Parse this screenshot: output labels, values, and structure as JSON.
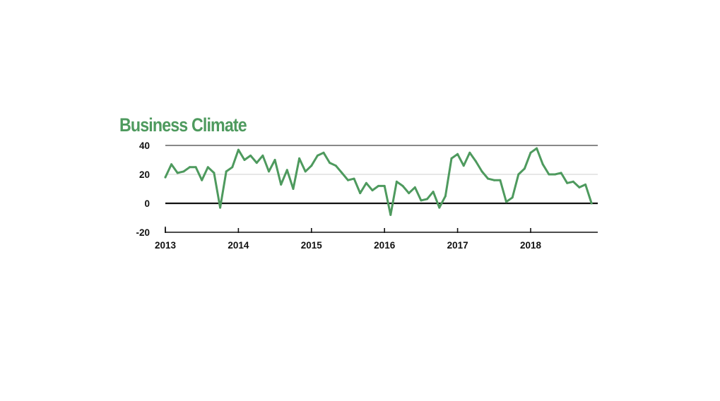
{
  "colors": {
    "series": "#4e9a5e",
    "axis": "#111111",
    "grid": "#cfcfcf",
    "title": "#4e9a5e"
  },
  "chart_data": {
    "type": "line",
    "title": "Business Climate",
    "xlabel": "",
    "ylabel": "",
    "ylim": [
      -20,
      40
    ],
    "xlim": [
      "2013-01",
      "2018-12"
    ],
    "y_ticks": [
      "40",
      "20",
      "0",
      "-20"
    ],
    "x_ticks": [
      "2013",
      "2014",
      "2015",
      "2016",
      "2017",
      "2018"
    ],
    "grid": "horizontal",
    "legend": "none",
    "series": [
      {
        "x": [
          "2013-01",
          "2013-02",
          "2013-03",
          "2013-04",
          "2013-05",
          "2013-06",
          "2013-07",
          "2013-08",
          "2013-09",
          "2013-10",
          "2013-11",
          "2013-12",
          "2014-01",
          "2014-02",
          "2014-03",
          "2014-04",
          "2014-05",
          "2014-06",
          "2014-07",
          "2014-08",
          "2014-09",
          "2014-10",
          "2014-11",
          "2014-12",
          "2015-01",
          "2015-02",
          "2015-03",
          "2015-04",
          "2015-05",
          "2015-06",
          "2015-07",
          "2015-08",
          "2015-09",
          "2015-10",
          "2015-11",
          "2015-12",
          "2016-01",
          "2016-02",
          "2016-03",
          "2016-04",
          "2016-05",
          "2016-06",
          "2016-07",
          "2016-08",
          "2016-09",
          "2016-10",
          "2016-11",
          "2016-12",
          "2017-01",
          "2017-02",
          "2017-03",
          "2017-04",
          "2017-05",
          "2017-06",
          "2017-07",
          "2017-08",
          "2017-09",
          "2017-10",
          "2017-11",
          "2017-12",
          "2018-01",
          "2018-02",
          "2018-03",
          "2018-04",
          "2018-05",
          "2018-06",
          "2018-07",
          "2018-08",
          "2018-09",
          "2018-10",
          "2018-11"
        ],
        "values": [
          18,
          27,
          21,
          22,
          25,
          25,
          16,
          25,
          21,
          -3,
          22,
          25,
          37,
          30,
          33,
          28,
          33,
          22,
          30,
          13,
          23,
          10,
          31,
          22,
          26,
          33,
          35,
          28,
          26,
          21,
          16,
          17,
          7,
          14,
          9,
          12,
          12,
          -8,
          15,
          12,
          7,
          11,
          2,
          3,
          8,
          -3,
          5,
          31,
          34,
          26,
          35,
          29,
          22,
          17,
          16,
          16,
          1,
          4,
          20,
          24,
          35,
          38,
          27,
          20,
          20,
          21,
          14,
          15,
          11,
          13,
          0
        ]
      }
    ]
  }
}
